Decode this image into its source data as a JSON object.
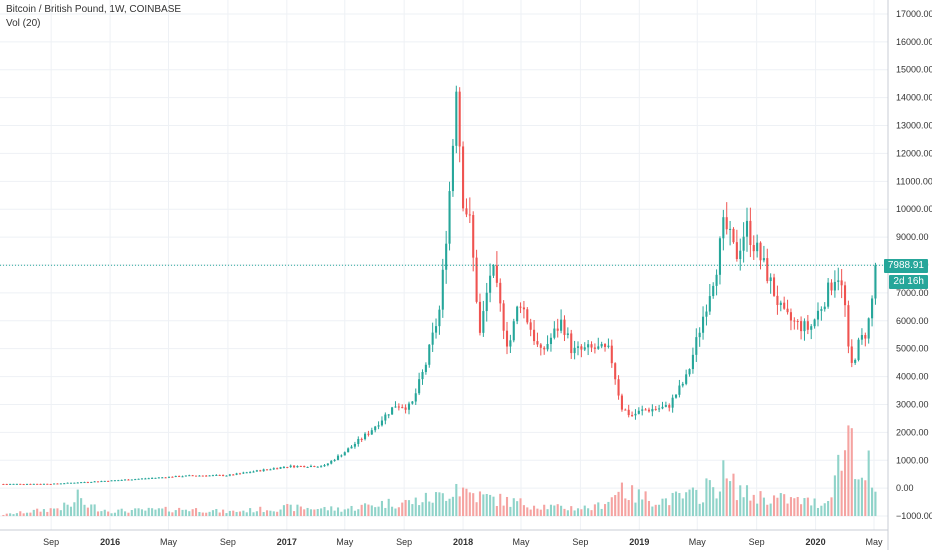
{
  "legend": {
    "title": "Bitcoin / British Pound, 1W, COINBASE",
    "volume": "Vol (20)"
  },
  "last_price_tag": "7988.91",
  "countdown_tag": "2d 16h",
  "colors": {
    "up": "#26a69a",
    "down": "#ef5350",
    "up_vol": "#8fd3c9",
    "down_vol": "#f5a3a1",
    "grid": "#eef1f5",
    "axis_text": "#333333"
  },
  "chart_data": {
    "type": "candlestick",
    "title": "Bitcoin / British Pound, 1W, COINBASE",
    "indicator": "Vol (20)",
    "interval": "1W",
    "last_price": 7988.91,
    "y_ticks": [
      -1000,
      0,
      1000,
      2000,
      3000,
      4000,
      5000,
      6000,
      7000,
      8000,
      9000,
      10000,
      11000,
      12000,
      13000,
      14000,
      15000,
      16000,
      17000
    ],
    "y_tick_labels": [
      "−1000.00",
      "0.00",
      "1000.00",
      "2000.00",
      "3000.00",
      "4000.00",
      "5000.00",
      "6000.00",
      "7000.00",
      "8000.00",
      "9000.00",
      "10000.00",
      "11000.00",
      "12000.00",
      "13000.00",
      "14000.00",
      "15000.00",
      "16000.00",
      "17000.00"
    ],
    "ylim": [
      -1500,
      17500
    ],
    "x_ticks": [
      {
        "label": "Sep",
        "date": "2015-09-01"
      },
      {
        "label": "2016",
        "date": "2016-01-01"
      },
      {
        "label": "May",
        "date": "2016-05-01"
      },
      {
        "label": "Sep",
        "date": "2016-09-01"
      },
      {
        "label": "2017",
        "date": "2017-01-01"
      },
      {
        "label": "May",
        "date": "2017-05-01"
      },
      {
        "label": "Sep",
        "date": "2017-09-01"
      },
      {
        "label": "2018",
        "date": "2018-01-01"
      },
      {
        "label": "May",
        "date": "2018-05-01"
      },
      {
        "label": "Sep",
        "date": "2018-09-01"
      },
      {
        "label": "2019",
        "date": "2019-01-01"
      },
      {
        "label": "May",
        "date": "2019-05-01"
      },
      {
        "label": "Sep",
        "date": "2019-09-01"
      },
      {
        "label": "2020",
        "date": "2020-01-01"
      },
      {
        "label": "May",
        "date": "2020-05-01"
      }
    ],
    "xlim": [
      "2015-05-18",
      "2020-05-30"
    ],
    "price_keyframes": [
      [
        "2015-05-25",
        150
      ],
      [
        "2015-09-01",
        155
      ],
      [
        "2016-01-01",
        270
      ],
      [
        "2016-06-15",
        450
      ],
      [
        "2016-09-01",
        460
      ],
      [
        "2017-01-01",
        780
      ],
      [
        "2017-03-20",
        800
      ],
      [
        "2017-05-01",
        1300
      ],
      [
        "2017-06-20",
        2000
      ],
      [
        "2017-08-15",
        3000
      ],
      [
        "2017-09-15",
        2900
      ],
      [
        "2017-10-15",
        4400
      ],
      [
        "2017-11-15",
        6500
      ],
      [
        "2017-12-10",
        12000
      ],
      [
        "2017-12-17",
        15000
      ],
      [
        "2017-12-31",
        10500
      ],
      [
        "2018-01-15",
        9500
      ],
      [
        "2018-02-05",
        5500
      ],
      [
        "2018-03-01",
        8000
      ],
      [
        "2018-04-05",
        5000
      ],
      [
        "2018-04-28",
        6800
      ],
      [
        "2018-06-10",
        4800
      ],
      [
        "2018-07-25",
        6000
      ],
      [
        "2018-08-15",
        4900
      ],
      [
        "2018-10-01",
        5000
      ],
      [
        "2018-11-01",
        4900
      ],
      [
        "2018-11-25",
        2900
      ],
      [
        "2018-12-15",
        2600
      ],
      [
        "2019-01-10",
        2800
      ],
      [
        "2019-03-01",
        2900
      ],
      [
        "2019-04-10",
        4000
      ],
      [
        "2019-05-15",
        6300
      ],
      [
        "2019-06-10",
        8000
      ],
      [
        "2019-06-26",
        9500
      ],
      [
        "2019-07-20",
        8300
      ],
      [
        "2019-08-10",
        9400
      ],
      [
        "2019-09-20",
        7800
      ],
      [
        "2019-10-25",
        6200
      ],
      [
        "2019-11-20",
        5900
      ],
      [
        "2019-12-20",
        5700
      ],
      [
        "2020-01-20",
        6800
      ],
      [
        "2020-02-15",
        7800
      ],
      [
        "2020-03-01",
        6700
      ],
      [
        "2020-03-12",
        4200
      ],
      [
        "2020-03-31",
        5200
      ],
      [
        "2020-04-15",
        5600
      ],
      [
        "2020-04-25",
        6400
      ],
      [
        "2020-05-04",
        7989
      ]
    ],
    "volume_keyframes": [
      [
        "2015-05-25",
        50
      ],
      [
        "2015-09-01",
        250
      ],
      [
        "2015-11-01",
        450
      ],
      [
        "2016-01-01",
        180
      ],
      [
        "2016-06-15",
        250
      ],
      [
        "2016-09-01",
        150
      ],
      [
        "2017-01-01",
        300
      ],
      [
        "2017-05-01",
        250
      ],
      [
        "2017-07-15",
        450
      ],
      [
        "2017-09-15",
        500
      ],
      [
        "2017-11-15",
        700
      ],
      [
        "2017-12-17",
        1050
      ],
      [
        "2018-02-05",
        700
      ],
      [
        "2018-04-15",
        500
      ],
      [
        "2018-07-15",
        300
      ],
      [
        "2018-10-01",
        300
      ],
      [
        "2018-11-25",
        900
      ],
      [
        "2018-12-20",
        750
      ],
      [
        "2019-02-15",
        550
      ],
      [
        "2019-05-15",
        800
      ],
      [
        "2019-06-26",
        1300
      ],
      [
        "2019-08-15",
        750
      ],
      [
        "2019-10-25",
        600
      ],
      [
        "2020-01-20",
        450
      ],
      [
        "2020-03-12",
        2900
      ],
      [
        "2020-04-15",
        800
      ],
      [
        "2020-05-04",
        700
      ]
    ],
    "volume_spikes": [
      [
        "2015-10-25",
        950
      ],
      [
        "2017-12-17",
        1150
      ],
      [
        "2018-11-25",
        1200
      ],
      [
        "2019-06-26",
        2000
      ],
      [
        "2019-05-20",
        1350
      ],
      [
        "2020-03-12",
        3250
      ],
      [
        "2020-04-20",
        2350
      ],
      [
        "2020-03-19",
        3150
      ]
    ]
  }
}
